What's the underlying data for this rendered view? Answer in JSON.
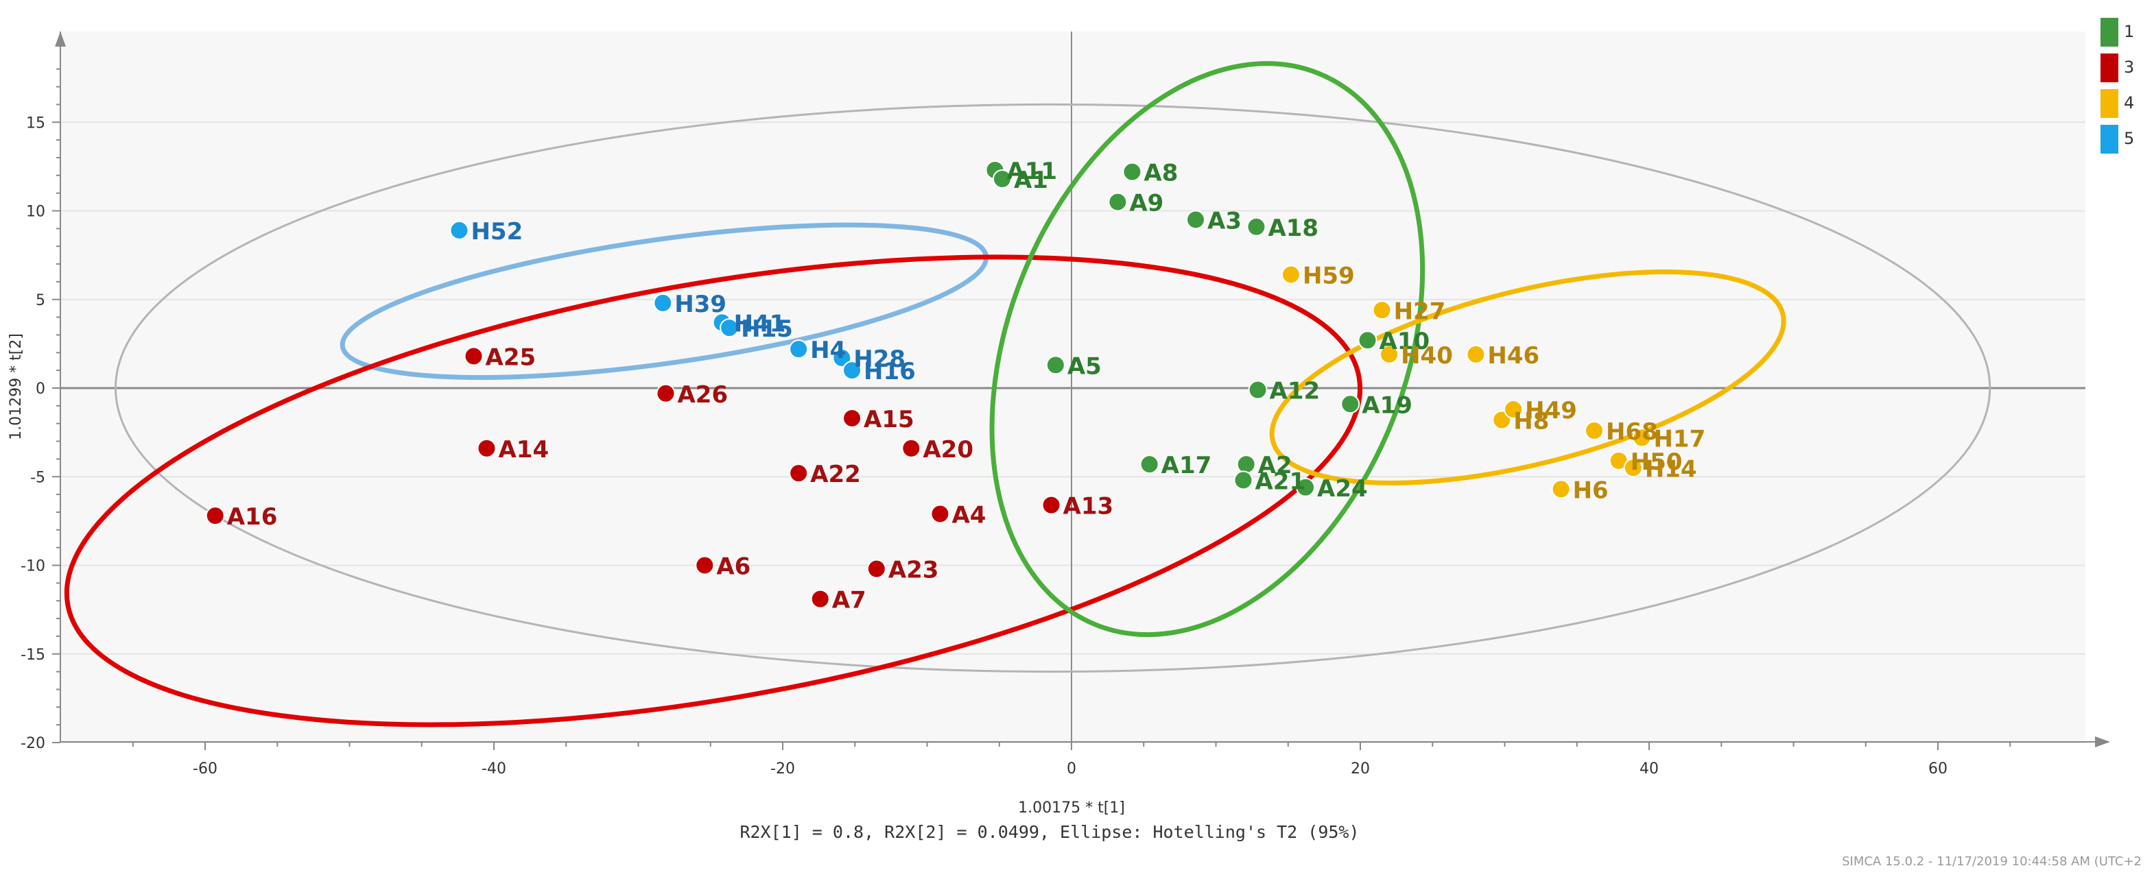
{
  "chart_data": {
    "type": "scatter",
    "title": "",
    "xlabel": "1.00175 * t[1]",
    "ylabel": "1.01299 * t[2]",
    "subtitle": "R2X[1] = 0.8, R2X[2] = 0.0499, Ellipse: Hotelling's T2 (95%)",
    "footer": "SIMCA 15.0.2 - 11/17/2019 10:44:58 AM (UTC+2",
    "xlim": [
      -70,
      70
    ],
    "ylim": [
      -20,
      20
    ],
    "x_ticks": [
      -60,
      -40,
      -20,
      0,
      20,
      40,
      60
    ],
    "y_ticks": [
      15,
      10,
      5,
      0,
      -5,
      -10,
      -15,
      -20
    ],
    "grid": true,
    "legend_position": "top-right",
    "legend": [
      {
        "label": "1",
        "color": "#3f9a3f"
      },
      {
        "label": "3",
        "color": "#c00000"
      },
      {
        "label": "4",
        "color": "#f5b800"
      },
      {
        "label": "5",
        "color": "#1aa3e8"
      }
    ],
    "series": [
      {
        "name": "1",
        "color": "#3f9a3f",
        "label_color": "#2e7d2e",
        "points": [
          {
            "label": "A11",
            "x": -5.3,
            "y": 12.3
          },
          {
            "label": "A1",
            "x": -4.8,
            "y": 11.8
          },
          {
            "label": "A8",
            "x": 4.2,
            "y": 12.2
          },
          {
            "label": "A9",
            "x": 3.2,
            "y": 10.5
          },
          {
            "label": "A3",
            "x": 8.6,
            "y": 9.5
          },
          {
            "label": "A18",
            "x": 12.8,
            "y": 9.1
          },
          {
            "label": "A5",
            "x": -1.1,
            "y": 1.3
          },
          {
            "label": "A10",
            "x": 20.5,
            "y": 2.7
          },
          {
            "label": "A12",
            "x": 12.9,
            "y": -0.1
          },
          {
            "label": "A19",
            "x": 19.3,
            "y": -0.9
          },
          {
            "label": "A17",
            "x": 5.4,
            "y": -4.3
          },
          {
            "label": "A2",
            "x": 12.1,
            "y": -4.3
          },
          {
            "label": "A21",
            "x": 11.9,
            "y": -5.2
          },
          {
            "label": "A24",
            "x": 16.2,
            "y": -5.6
          }
        ]
      },
      {
        "name": "3",
        "color": "#c00000",
        "label_color": "#a30f0f",
        "points": [
          {
            "label": "A25",
            "x": -41.4,
            "y": 1.8
          },
          {
            "label": "A26",
            "x": -28.1,
            "y": -0.3
          },
          {
            "label": "A14",
            "x": -40.5,
            "y": -3.4
          },
          {
            "label": "A15",
            "x": -15.2,
            "y": -1.7
          },
          {
            "label": "A20",
            "x": -11.1,
            "y": -3.4
          },
          {
            "label": "A22",
            "x": -18.9,
            "y": -4.8
          },
          {
            "label": "A16",
            "x": -59.3,
            "y": -7.2
          },
          {
            "label": "A4",
            "x": -9.1,
            "y": -7.1
          },
          {
            "label": "A13",
            "x": -1.4,
            "y": -6.6
          },
          {
            "label": "A6",
            "x": -25.4,
            "y": -10.0
          },
          {
            "label": "A23",
            "x": -13.5,
            "y": -10.2
          },
          {
            "label": "A7",
            "x": -17.4,
            "y": -11.9
          }
        ]
      },
      {
        "name": "4",
        "color": "#f5b800",
        "label_color": "#b8860b",
        "points": [
          {
            "label": "H59",
            "x": 15.2,
            "y": 6.4
          },
          {
            "label": "H27",
            "x": 21.5,
            "y": 4.4
          },
          {
            "label": "H40",
            "x": 22.0,
            "y": 1.9
          },
          {
            "label": "H46",
            "x": 28.0,
            "y": 1.9
          },
          {
            "label": "H68",
            "x": 36.2,
            "y": -2.4
          },
          {
            "label": "H8",
            "x": 29.8,
            "y": -1.8
          },
          {
            "label": "H49",
            "x": 30.6,
            "y": -1.2
          },
          {
            "label": "H17",
            "x": 39.5,
            "y": -2.8
          },
          {
            "label": "H6",
            "x": 33.9,
            "y": -5.7
          },
          {
            "label": "H50",
            "x": 37.9,
            "y": -4.1
          },
          {
            "label": "H14",
            "x": 38.9,
            "y": -4.5
          }
        ]
      },
      {
        "name": "5",
        "color": "#1aa3e8",
        "label_color": "#1f6fb2",
        "points": [
          {
            "label": "H52",
            "x": -42.4,
            "y": 8.9
          },
          {
            "label": "H39",
            "x": -28.3,
            "y": 4.8
          },
          {
            "label": "H41",
            "x": -24.2,
            "y": 3.7
          },
          {
            "label": "H15",
            "x": -23.7,
            "y": 3.4
          },
          {
            "label": "H4",
            "x": -18.9,
            "y": 2.2
          },
          {
            "label": "H28",
            "x": -15.9,
            "y": 1.7
          },
          {
            "label": "H16",
            "x": -15.2,
            "y": 1.0
          }
        ]
      }
    ],
    "ellipses": [
      {
        "name": "hotelling-t2",
        "color": "#b4b4b4",
        "cx": -1.3,
        "cy": 0.0,
        "rx": 64.9,
        "ry": 16.0,
        "angle": 0
      },
      {
        "name": "group-5",
        "color": "#7fb6e2",
        "cx": -28.2,
        "cy": 4.9,
        "rx": 22.5,
        "ry": 3.5,
        "angle": -8
      },
      {
        "name": "group-3",
        "color": "#e00000",
        "cx": -24.8,
        "cy": -5.8,
        "rx": 45.4,
        "ry": 11.7,
        "angle": -10
      },
      {
        "name": "group-1",
        "color": "#4aae3a",
        "cx": 9.4,
        "cy": 2.2,
        "rx": 20.6,
        "ry": 11.2,
        "angle": -68
      },
      {
        "name": "group-4",
        "color": "#f5b800",
        "cx": 31.6,
        "cy": 0.6,
        "rx": 18.2,
        "ry": 4.9,
        "angle": -14
      }
    ]
  }
}
